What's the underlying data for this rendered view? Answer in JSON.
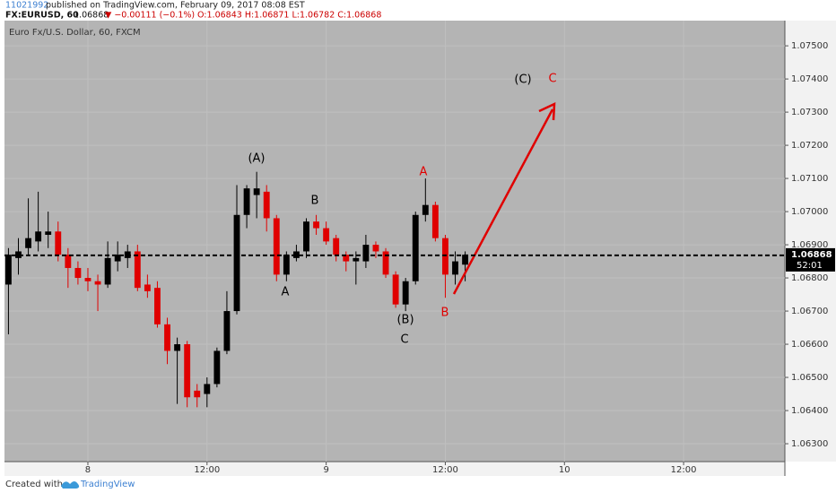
{
  "header": {
    "author": "11021992",
    "published": " published on TradingView.com, February 09, 2017 08:08 EST",
    "symbol": "FX:EURUSD, 60",
    "price": "1.06868",
    "change": "▼ −0.00111 (−0.1%)",
    "ohlc": "O:1.06843 H:1.06871 L:1.06782 C:1.06868"
  },
  "footer": {
    "created": "Created with",
    "brand": "TradingView"
  },
  "chart_data": {
    "type": "candlestick",
    "title": "Euro Fx/U.S. Dollar, 60, FXCM",
    "x": [
      -8,
      -7,
      -6,
      -5,
      -4,
      -3,
      -2,
      -1,
      0,
      1,
      2,
      3,
      4,
      5,
      6,
      7,
      8,
      9,
      10,
      11,
      12,
      13,
      14,
      15,
      16,
      17,
      18,
      19,
      20,
      21,
      22,
      23,
      24,
      25,
      26,
      27,
      28,
      29,
      30,
      31,
      32,
      33,
      34,
      35,
      36,
      37,
      38
    ],
    "open": [
      1.0678,
      1.0686,
      1.0689,
      1.0691,
      1.0693,
      1.0694,
      1.0687,
      1.0683,
      1.068,
      1.0679,
      1.0678,
      1.0685,
      1.0686,
      1.0688,
      1.0678,
      1.0677,
      1.0666,
      1.0658,
      1.066,
      1.0646,
      1.0645,
      1.0648,
      1.0658,
      1.067,
      1.0699,
      1.0705,
      1.0706,
      1.0698,
      1.0681,
      1.0686,
      1.0688,
      1.0697,
      1.0695,
      1.0692,
      1.0687,
      1.0685,
      1.0685,
      1.069,
      1.0688,
      1.0681,
      1.0672,
      1.0679,
      1.0699,
      1.0702,
      1.0692,
      1.0681,
      1.0684
    ],
    "high": [
      1.0689,
      1.0692,
      1.0704,
      1.0706,
      1.07,
      1.0697,
      1.0689,
      1.0685,
      1.0683,
      1.0681,
      1.0691,
      1.0691,
      1.069,
      1.069,
      1.0681,
      1.0679,
      1.0668,
      1.0662,
      1.0661,
      1.0648,
      1.065,
      1.0659,
      1.0676,
      1.0708,
      1.0708,
      1.0712,
      1.0708,
      1.0699,
      1.0688,
      1.069,
      1.0698,
      1.0699,
      1.0697,
      1.0693,
      1.0688,
      1.0688,
      1.0693,
      1.0691,
      1.0689,
      1.0682,
      1.068,
      1.07,
      1.071,
      1.0703,
      1.0693,
      1.0688,
      1.0688
    ],
    "low": [
      1.0663,
      1.0681,
      1.0687,
      1.0688,
      1.0689,
      1.0685,
      1.0677,
      1.0678,
      1.0676,
      1.067,
      1.0677,
      1.0682,
      1.0683,
      1.0676,
      1.0674,
      1.0665,
      1.0654,
      1.0642,
      1.0641,
      1.0641,
      1.0641,
      1.0647,
      1.0657,
      1.0669,
      1.0695,
      1.0698,
      1.0694,
      1.0679,
      1.0679,
      1.0685,
      1.0686,
      1.0693,
      1.069,
      1.0685,
      1.0682,
      1.0678,
      1.0683,
      1.0686,
      1.068,
      1.0671,
      1.067,
      1.0678,
      1.0697,
      1.0691,
      1.0674,
      1.0678,
      1.0679
    ],
    "close": [
      1.0687,
      1.0688,
      1.0692,
      1.0694,
      1.0694,
      1.0687,
      1.0683,
      1.068,
      1.0679,
      1.0678,
      1.0686,
      1.0687,
      1.0688,
      1.0677,
      1.0676,
      1.0666,
      1.0658,
      1.066,
      1.0644,
      1.0644,
      1.0648,
      1.0658,
      1.067,
      1.0699,
      1.0707,
      1.0707,
      1.0698,
      1.0681,
      1.0687,
      1.0688,
      1.0697,
      1.0695,
      1.0691,
      1.0687,
      1.0685,
      1.0686,
      1.069,
      1.0688,
      1.0681,
      1.0672,
      1.0679,
      1.0699,
      1.0702,
      1.0692,
      1.0681,
      1.0685,
      1.0687
    ],
    "up_color": "#000000",
    "down_color": "#e00000",
    "xlim": [
      -8.4,
      70.2
    ],
    "xticks": [
      {
        "value": 0,
        "label": "8"
      },
      {
        "value": 12,
        "label": "12:00"
      },
      {
        "value": 24,
        "label": "9"
      },
      {
        "value": 36,
        "label": "12:00"
      },
      {
        "value": 48,
        "label": "10"
      },
      {
        "value": 60,
        "label": "12:00"
      }
    ],
    "ylim": [
      1.06246,
      1.07576
    ],
    "yticks": [
      {
        "value": 1.063,
        "label": "1.06300"
      },
      {
        "value": 1.064,
        "label": "1.06400"
      },
      {
        "value": 1.065,
        "label": "1.06500"
      },
      {
        "value": 1.066,
        "label": "1.06600"
      },
      {
        "value": 1.067,
        "label": "1.06700"
      },
      {
        "value": 1.068,
        "label": "1.06800"
      },
      {
        "value": 1.069,
        "label": "1.06900"
      },
      {
        "value": 1.07,
        "label": "1.07000"
      },
      {
        "value": 1.071,
        "label": "1.07100"
      },
      {
        "value": 1.072,
        "label": "1.07200"
      },
      {
        "value": 1.073,
        "label": "1.07300"
      },
      {
        "value": 1.074,
        "label": "1.07400"
      },
      {
        "value": 1.075,
        "label": "1.07500"
      }
    ],
    "grid": true,
    "last_price": 1.06868,
    "countdown": "52:01",
    "annotations": [
      {
        "text": "(A)",
        "color": "#000000"
      },
      {
        "text": "B",
        "color": "#000000"
      },
      {
        "text": "A",
        "color": "#000000"
      },
      {
        "text": "(B)",
        "color": "#000000"
      },
      {
        "text": "C",
        "color": "#000000"
      },
      {
        "text": "A",
        "color": "#e00000"
      },
      {
        "text": "B",
        "color": "#e00000"
      },
      {
        "text": "(C)",
        "color": "#000000"
      },
      {
        "text": "C",
        "color": "#e00000"
      }
    ]
  }
}
